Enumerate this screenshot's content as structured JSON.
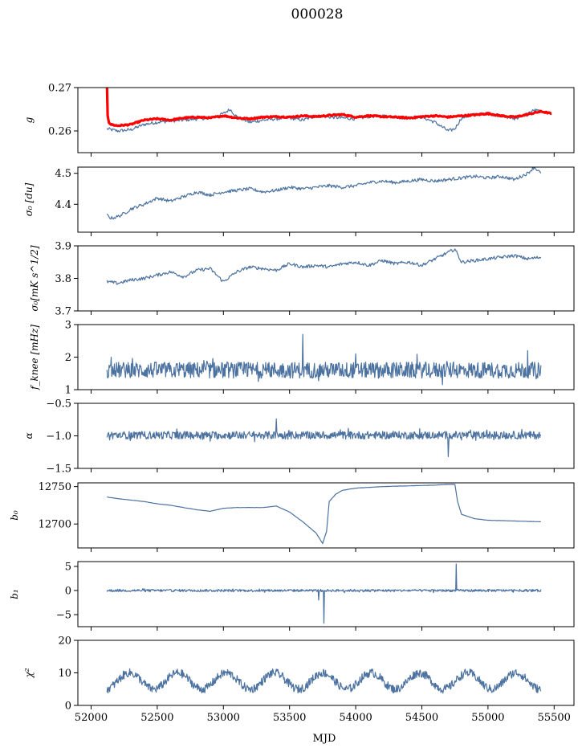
{
  "figure_title": "000028",
  "colors": {
    "series": "#4c72a0",
    "fit": "#ff0000",
    "axes": "#000000"
  },
  "chart_data": [
    {
      "type": "line",
      "ylabel": "g",
      "ylim": [
        0.255,
        0.27
      ],
      "yticks": [
        0.26,
        0.27
      ],
      "ytick_labels": [
        "0.26",
        "0.27"
      ],
      "xlim": [
        51900,
        55650
      ],
      "series": [
        {
          "key": "measured",
          "x": [
            52120,
            52200,
            52300,
            52400,
            52500,
            52600,
            52700,
            52800,
            52900,
            53000,
            53050,
            53100,
            53200,
            53300,
            53400,
            53500,
            53600,
            53700,
            53800,
            53900,
            54000,
            54100,
            54200,
            54300,
            54400,
            54500,
            54600,
            54700,
            54750,
            54800,
            54900,
            55000,
            55100,
            55200,
            55300,
            55350,
            55400
          ],
          "y": [
            0.2605,
            0.26,
            0.2603,
            0.2615,
            0.262,
            0.2623,
            0.2625,
            0.2628,
            0.263,
            0.264,
            0.265,
            0.2633,
            0.262,
            0.2625,
            0.2628,
            0.263,
            0.2625,
            0.2635,
            0.2632,
            0.263,
            0.2628,
            0.2633,
            0.2635,
            0.2632,
            0.263,
            0.2632,
            0.262,
            0.26,
            0.2605,
            0.263,
            0.2638,
            0.264,
            0.2635,
            0.2628,
            0.264,
            0.2648,
            0.2645
          ]
        },
        {
          "key": "smoothed",
          "x": [
            52120,
            52125,
            52135,
            52150,
            52200,
            52300,
            52400,
            52500,
            52600,
            52700,
            52800,
            52900,
            53000,
            53100,
            53200,
            53300,
            53400,
            53500,
            53600,
            53700,
            53800,
            53900,
            54000,
            54100,
            54200,
            54300,
            54400,
            54500,
            54600,
            54700,
            54800,
            54900,
            55000,
            55100,
            55200,
            55300,
            55400,
            55480
          ],
          "y": [
            0.27,
            0.2635,
            0.262,
            0.2615,
            0.2612,
            0.2615,
            0.2625,
            0.2628,
            0.2625,
            0.263,
            0.2632,
            0.263,
            0.2635,
            0.263,
            0.2628,
            0.2632,
            0.2633,
            0.2632,
            0.2635,
            0.2633,
            0.2636,
            0.2638,
            0.2632,
            0.2635,
            0.2633,
            0.2632,
            0.263,
            0.2633,
            0.2635,
            0.2632,
            0.2635,
            0.2637,
            0.264,
            0.2635,
            0.2632,
            0.2638,
            0.2645,
            0.264
          ]
        }
      ]
    },
    {
      "type": "line",
      "ylabel": "σ₀ [du]",
      "ylim": [
        4.31,
        4.52
      ],
      "yticks": [
        4.4,
        4.5
      ],
      "ytick_labels": [
        "4.4",
        "4.5"
      ],
      "xlim": [
        51900,
        55650
      ],
      "series": [
        {
          "x": [
            52120,
            52150,
            52200,
            52250,
            52300,
            52400,
            52500,
            52600,
            52700,
            52800,
            52900,
            53000,
            53100,
            53200,
            53300,
            53400,
            53500,
            53600,
            53700,
            53800,
            53900,
            54000,
            54100,
            54200,
            54300,
            54400,
            54500,
            54600,
            54700,
            54800,
            54900,
            55000,
            55100,
            55200,
            55300,
            55350,
            55400
          ],
          "y": [
            4.365,
            4.355,
            4.36,
            4.37,
            4.385,
            4.4,
            4.42,
            4.41,
            4.425,
            4.44,
            4.43,
            4.44,
            4.445,
            4.45,
            4.44,
            4.445,
            4.455,
            4.45,
            4.455,
            4.46,
            4.455,
            4.46,
            4.47,
            4.475,
            4.47,
            4.475,
            4.48,
            4.475,
            4.48,
            4.485,
            4.49,
            4.485,
            4.49,
            4.48,
            4.5,
            4.52,
            4.5
          ]
        }
      ]
    },
    {
      "type": "line",
      "ylabel": "σ₀[mK s^1/2]",
      "ylim": [
        3.7,
        3.9
      ],
      "yticks": [
        3.7,
        3.8,
        3.9
      ],
      "ytick_labels": [
        "3.7",
        "3.8",
        "3.9"
      ],
      "xlim": [
        51900,
        55650
      ],
      "series": [
        {
          "x": [
            52120,
            52200,
            52300,
            52400,
            52500,
            52600,
            52700,
            52800,
            52900,
            53000,
            53100,
            53200,
            53300,
            53400,
            53500,
            53600,
            53700,
            53800,
            53900,
            54000,
            54100,
            54200,
            54300,
            54400,
            54500,
            54600,
            54700,
            54750,
            54800,
            54900,
            55000,
            55100,
            55200,
            55300,
            55400
          ],
          "y": [
            3.79,
            3.785,
            3.795,
            3.8,
            3.81,
            3.82,
            3.805,
            3.825,
            3.83,
            3.79,
            3.82,
            3.835,
            3.83,
            3.825,
            3.845,
            3.835,
            3.84,
            3.835,
            3.845,
            3.85,
            3.84,
            3.855,
            3.845,
            3.85,
            3.84,
            3.86,
            3.88,
            3.89,
            3.85,
            3.855,
            3.86,
            3.865,
            3.87,
            3.86,
            3.865
          ]
        }
      ]
    },
    {
      "type": "line",
      "ylabel": "f_knee [mHz]",
      "ylim": [
        1,
        3
      ],
      "yticks": [
        1,
        2,
        3
      ],
      "ytick_labels": [
        "1",
        "2",
        "3"
      ],
      "xlim": [
        51900,
        55650
      ],
      "series": [
        {
          "noise": {
            "center": 1.6,
            "amp": 0.25,
            "spikes": [
              [
                53600,
                2.7
              ],
              [
                54000,
                2.1
              ],
              [
                55300,
                2.2
              ]
            ]
          }
        }
      ]
    },
    {
      "type": "line",
      "ylabel": "α",
      "ylim": [
        -1.5,
        -0.5
      ],
      "yticks": [
        -1.5,
        -1.0,
        -0.5
      ],
      "ytick_labels": [
        "−1.5",
        "−1.0",
        "−0.5"
      ],
      "xlim": [
        51900,
        55650
      ],
      "series": [
        {
          "noise": {
            "center": -0.99,
            "amp": 0.06,
            "spikes": [
              [
                53400,
                -0.74
              ],
              [
                54700,
                -1.32
              ]
            ]
          }
        }
      ]
    },
    {
      "type": "line",
      "ylabel": "b₀",
      "ylim": [
        12668,
        12755
      ],
      "yticks": [
        12700,
        12750
      ],
      "ytick_labels": [
        "12700",
        "12750"
      ],
      "xlim": [
        51900,
        55650
      ],
      "series": [
        {
          "x": [
            52120,
            52200,
            52300,
            52400,
            52500,
            52600,
            52700,
            52800,
            52900,
            53000,
            53100,
            53200,
            53300,
            53400,
            53500,
            53600,
            53700,
            53750,
            53780,
            53800,
            53850,
            53900,
            54000,
            54200,
            54400,
            54600,
            54700,
            54750,
            54770,
            54800,
            54900,
            55000,
            55200,
            55400
          ],
          "y": [
            12736,
            12734,
            12732,
            12730,
            12727,
            12725,
            12722,
            12719,
            12717,
            12721,
            12722,
            12722,
            12722,
            12724,
            12716,
            12703,
            12688,
            12674,
            12690,
            12730,
            12740,
            12745,
            12748,
            12750,
            12751,
            12752,
            12753,
            12753,
            12730,
            12713,
            12707,
            12705,
            12704,
            12703
          ]
        }
      ]
    },
    {
      "type": "line",
      "ylabel": "b₁",
      "ylim": [
        -7.5,
        6
      ],
      "yticks": [
        -5,
        0,
        5
      ],
      "ytick_labels": [
        "−5",
        "0",
        "5"
      ],
      "xlim": [
        51900,
        55650
      ],
      "series": [
        {
          "noise": {
            "center": 0,
            "amp": 0.25,
            "spikes": [
              [
                53720,
                -2
              ],
              [
                53760,
                -6.8
              ],
              [
                54760,
                5.5
              ]
            ]
          }
        }
      ]
    },
    {
      "type": "line",
      "ylabel": "χ²",
      "ylim": [
        0,
        20
      ],
      "yticks": [
        0,
        10,
        20
      ],
      "ytick_labels": [
        "0",
        "10",
        "20"
      ],
      "xlim": [
        51900,
        55650
      ],
      "xticks": [
        52000,
        52500,
        53000,
        53500,
        54000,
        54500,
        55000,
        55500
      ],
      "xtick_labels": [
        "52000",
        "52500",
        "53000",
        "53500",
        "54000",
        "54500",
        "55000",
        "55500"
      ],
      "xlabel": "MJD",
      "series": [
        {
          "seasonal": {
            "mean": 7.5,
            "amp": 2.5,
            "period": 365,
            "noise": 1.3
          }
        }
      ]
    }
  ]
}
